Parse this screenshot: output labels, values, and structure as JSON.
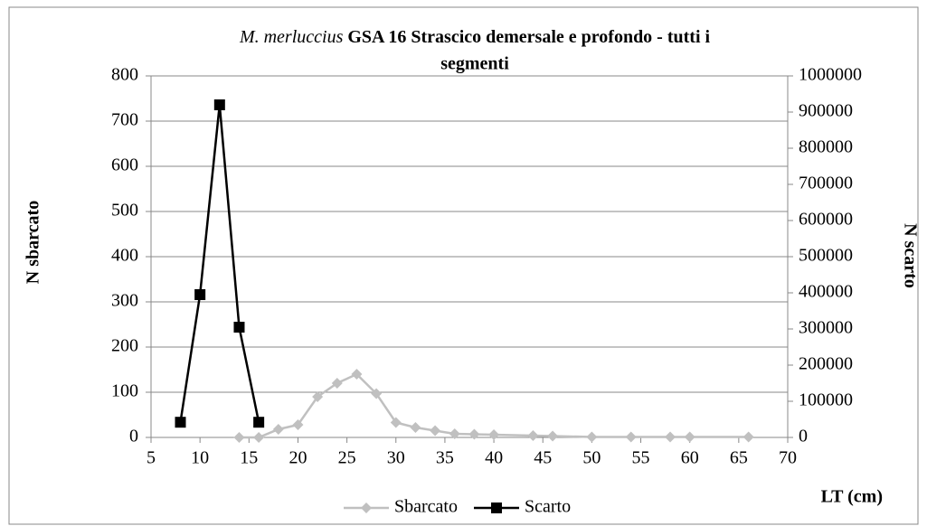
{
  "chart_data": {
    "type": "line",
    "title": {
      "species": "M. merluccius",
      "line1": "GSA 16 Strascico demersale e profondo - tutti i",
      "line2": "segmenti"
    },
    "x_label": "LT (cm)",
    "y_label": "N sbarcato",
    "y2_label": "N scarto",
    "xlim": [
      5,
      70
    ],
    "xticks": [
      5,
      10,
      15,
      20,
      25,
      30,
      35,
      40,
      45,
      50,
      55,
      60,
      65,
      70
    ],
    "ylim": [
      0,
      800
    ],
    "yticks": [
      0,
      100,
      200,
      300,
      400,
      500,
      600,
      700,
      800
    ],
    "y2lim": [
      0,
      1000000
    ],
    "y2ticks": [
      0,
      100000,
      200000,
      300000,
      400000,
      500000,
      600000,
      700000,
      800000,
      900000,
      1000000
    ],
    "grid": true,
    "legend": "bottom",
    "series": [
      {
        "name": "Sbarcato",
        "color": "#c0c0c0",
        "marker": "diamond",
        "axis": "y",
        "x": [
          14,
          16,
          18,
          20,
          22,
          24,
          26,
          28,
          30,
          32,
          34,
          36,
          38,
          40,
          44,
          46,
          50,
          54,
          58,
          60,
          66
        ],
        "values": [
          0,
          0,
          18,
          28,
          90,
          120,
          140,
          97,
          33,
          22,
          15,
          8,
          7,
          6,
          4,
          3,
          1,
          1,
          1,
          1,
          1
        ]
      },
      {
        "name": "Scarto",
        "color": "#000000",
        "marker": "square",
        "axis": "y2",
        "x": [
          8,
          10,
          12,
          14,
          16
        ],
        "values": [
          42000,
          395000,
          920000,
          305000,
          42000
        ]
      }
    ]
  }
}
